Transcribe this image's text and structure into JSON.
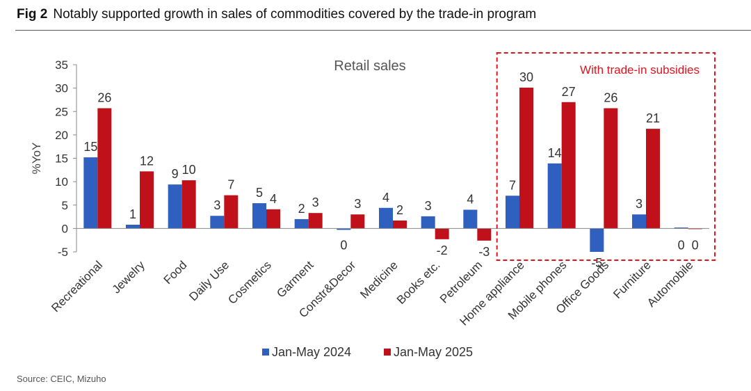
{
  "figure": {
    "label": "Fig 2",
    "title": "Notably supported growth in sales of commodities covered by the trade-in program",
    "source": "Source: CEIC, Mizuho"
  },
  "chart_data": {
    "type": "bar",
    "title": "Retail sales",
    "ylabel": "%YoY",
    "xlabel": "",
    "ylim": [
      -5,
      35
    ],
    "yticks": [
      -5,
      0,
      5,
      10,
      15,
      20,
      25,
      30,
      35
    ],
    "grid": false,
    "legend_position": "bottom",
    "categories": [
      "Recreational",
      "Jewelry",
      "Food",
      "Daily Use",
      "Cosmetics",
      "Garment",
      "Constr&Decor",
      "Medicine",
      "Books etc.",
      "Petroleum",
      "Home appliance",
      "Mobile phones",
      "Office Goods",
      "Furniture",
      "Automobile"
    ],
    "series": [
      {
        "name": "Jan-May 2024",
        "color": "#2f5fbf",
        "values": [
          15.2,
          0.8,
          9.4,
          2.7,
          5.4,
          2.0,
          -0.3,
          4.4,
          2.6,
          4.0,
          7.0,
          13.9,
          -5.0,
          3.0,
          0.2
        ],
        "labels": [
          "15",
          "1",
          "9",
          "3",
          "5",
          "2",
          "0",
          "4",
          "3",
          "4",
          "7",
          "14",
          "-5",
          "3",
          "0"
        ]
      },
      {
        "name": "Jan-May 2025",
        "color": "#c0111b",
        "values": [
          25.7,
          12.2,
          10.3,
          7.1,
          4.1,
          3.3,
          3.0,
          1.7,
          -2.3,
          -2.6,
          30.1,
          27.0,
          25.7,
          21.3,
          0.0
        ],
        "labels": [
          "26",
          "12",
          "10",
          "7",
          "4",
          "3",
          "3",
          "2",
          "-2",
          "-3",
          "30",
          "27",
          "26",
          "21",
          "0"
        ]
      }
    ],
    "highlight": {
      "label": "With trade-in subsidies",
      "color": "#e0141e",
      "from_category": "Home appliance",
      "to_category": "Automobile"
    }
  }
}
